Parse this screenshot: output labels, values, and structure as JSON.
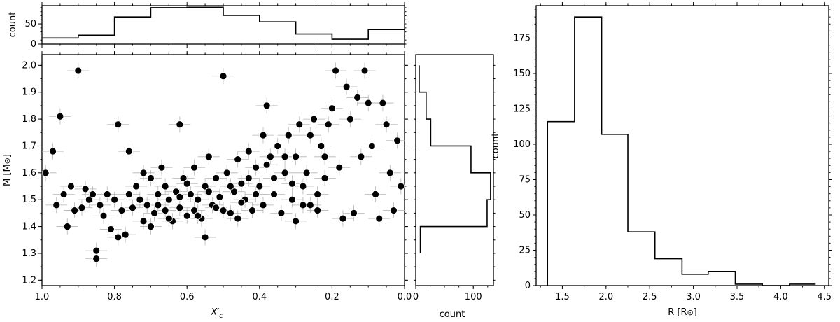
{
  "chart_data": [
    {
      "id": "top-hist",
      "type": "histogram",
      "ylabel": "count",
      "xlim": [
        1.0,
        0.0
      ],
      "ylim": [
        0,
        95
      ],
      "yticks": [
        0,
        50
      ],
      "yticklabels": [
        "0",
        "50"
      ],
      "bin_edges": [
        1.0,
        0.9,
        0.8,
        0.7,
        0.6,
        0.5,
        0.4,
        0.3,
        0.2,
        0.1,
        0.0
      ],
      "counts": [
        15,
        22,
        67,
        90,
        91,
        71,
        55,
        25,
        12,
        36
      ]
    },
    {
      "id": "scatter",
      "type": "scatter",
      "xlabel": "X′",
      "xlabel_sub": "c",
      "ylabel": "M [M",
      "ylabel_sym": "⊙",
      "ylabel_end": "]",
      "xlim": [
        1.0,
        0.0
      ],
      "ylim": [
        1.18,
        2.04
      ],
      "xticks": [
        1.0,
        0.8,
        0.6,
        0.4,
        0.2,
        0.0
      ],
      "xticklabels": [
        "1.0",
        "0.8",
        "0.6",
        "0.4",
        "0.2",
        "0.0"
      ],
      "yticks": [
        1.2,
        1.3,
        1.4,
        1.5,
        1.6,
        1.7,
        1.8,
        1.9,
        2.0
      ],
      "yticklabels": [
        "1.2",
        "1.3",
        "1.4",
        "1.5",
        "1.6",
        "1.7",
        "1.8",
        "1.9",
        "2.0"
      ],
      "points": [
        [
          0.99,
          1.6
        ],
        [
          0.97,
          1.68
        ],
        [
          0.96,
          1.48
        ],
        [
          0.95,
          1.81
        ],
        [
          0.94,
          1.52
        ],
        [
          0.93,
          1.4
        ],
        [
          0.92,
          1.55
        ],
        [
          0.91,
          1.46
        ],
        [
          0.9,
          1.98
        ],
        [
          0.89,
          1.47
        ],
        [
          0.88,
          1.54
        ],
        [
          0.87,
          1.5
        ],
        [
          0.86,
          1.52
        ],
        [
          0.85,
          1.28
        ],
        [
          0.85,
          1.31
        ],
        [
          0.84,
          1.48
        ],
        [
          0.83,
          1.44
        ],
        [
          0.82,
          1.52
        ],
        [
          0.81,
          1.39
        ],
        [
          0.8,
          1.5
        ],
        [
          0.79,
          1.78
        ],
        [
          0.79,
          1.36
        ],
        [
          0.78,
          1.46
        ],
        [
          0.77,
          1.37
        ],
        [
          0.76,
          1.68
        ],
        [
          0.76,
          1.52
        ],
        [
          0.75,
          1.47
        ],
        [
          0.74,
          1.55
        ],
        [
          0.73,
          1.5
        ],
        [
          0.72,
          1.42
        ],
        [
          0.72,
          1.6
        ],
        [
          0.71,
          1.48
        ],
        [
          0.7,
          1.58
        ],
        [
          0.69,
          1.45
        ],
        [
          0.68,
          1.52
        ],
        [
          0.67,
          1.62
        ],
        [
          0.66,
          1.55
        ],
        [
          0.66,
          1.46
        ],
        [
          0.65,
          1.5
        ],
        [
          0.64,
          1.42
        ],
        [
          0.63,
          1.53
        ],
        [
          0.62,
          1.78
        ],
        [
          0.62,
          1.47
        ],
        [
          0.61,
          1.58
        ],
        [
          0.6,
          1.44
        ],
        [
          0.59,
          1.52
        ],
        [
          0.58,
          1.62
        ],
        [
          0.58,
          1.46
        ],
        [
          0.57,
          1.5
        ],
        [
          0.56,
          1.43
        ],
        [
          0.55,
          1.55
        ],
        [
          0.55,
          1.36
        ],
        [
          0.54,
          1.66
        ],
        [
          0.53,
          1.48
        ],
        [
          0.52,
          1.58
        ],
        [
          0.51,
          1.51
        ],
        [
          0.5,
          1.96
        ],
        [
          0.5,
          1.46
        ],
        [
          0.49,
          1.6
        ],
        [
          0.48,
          1.45
        ],
        [
          0.47,
          1.53
        ],
        [
          0.46,
          1.65
        ],
        [
          0.46,
          1.43
        ],
        [
          0.45,
          1.56
        ],
        [
          0.44,
          1.5
        ],
        [
          0.43,
          1.68
        ],
        [
          0.42,
          1.46
        ],
        [
          0.41,
          1.62
        ],
        [
          0.4,
          1.55
        ],
        [
          0.39,
          1.74
        ],
        [
          0.39,
          1.48
        ],
        [
          0.38,
          1.85
        ],
        [
          0.37,
          1.66
        ],
        [
          0.36,
          1.52
        ],
        [
          0.35,
          1.7
        ],
        [
          0.34,
          1.45
        ],
        [
          0.33,
          1.6
        ],
        [
          0.32,
          1.74
        ],
        [
          0.31,
          1.5
        ],
        [
          0.3,
          1.42
        ],
        [
          0.3,
          1.66
        ],
        [
          0.29,
          1.78
        ],
        [
          0.28,
          1.55
        ],
        [
          0.27,
          1.6
        ],
        [
          0.26,
          1.48
        ],
        [
          0.25,
          1.8
        ],
        [
          0.24,
          1.46
        ],
        [
          0.23,
          1.7
        ],
        [
          0.22,
          1.66
        ],
        [
          0.21,
          1.78
        ],
        [
          0.2,
          1.84
        ],
        [
          0.19,
          1.98
        ],
        [
          0.18,
          1.62
        ],
        [
          0.17,
          1.43
        ],
        [
          0.16,
          1.92
        ],
        [
          0.15,
          1.8
        ],
        [
          0.14,
          1.45
        ],
        [
          0.13,
          1.88
        ],
        [
          0.12,
          1.66
        ],
        [
          0.11,
          1.98
        ],
        [
          0.1,
          1.86
        ],
        [
          0.09,
          1.7
        ],
        [
          0.08,
          1.52
        ],
        [
          0.07,
          1.43
        ],
        [
          0.06,
          1.86
        ],
        [
          0.05,
          1.78
        ],
        [
          0.04,
          1.6
        ],
        [
          0.03,
          1.46
        ],
        [
          0.02,
          1.72
        ],
        [
          0.01,
          1.55
        ],
        [
          0.7,
          1.4
        ],
        [
          0.68,
          1.48
        ],
        [
          0.65,
          1.43
        ],
        [
          0.62,
          1.51
        ],
        [
          0.6,
          1.56
        ],
        [
          0.57,
          1.44
        ],
        [
          0.54,
          1.53
        ],
        [
          0.52,
          1.47
        ],
        [
          0.48,
          1.55
        ],
        [
          0.45,
          1.49
        ],
        [
          0.43,
          1.58
        ],
        [
          0.41,
          1.52
        ],
        [
          0.38,
          1.63
        ],
        [
          0.36,
          1.58
        ],
        [
          0.33,
          1.66
        ],
        [
          0.31,
          1.56
        ],
        [
          0.28,
          1.48
        ],
        [
          0.26,
          1.74
        ],
        [
          0.24,
          1.52
        ],
        [
          0.22,
          1.58
        ]
      ],
      "xerr": 0.03,
      "yerr": 0.03
    },
    {
      "id": "right-hist",
      "type": "histogram",
      "orientation": "horizontal",
      "xlabel": "count",
      "xlim": [
        0,
        135
      ],
      "xticks": [
        0,
        100
      ],
      "xticklabels": [
        "0",
        "100"
      ],
      "bin_edges": [
        1.3,
        1.4,
        1.5,
        1.6,
        1.7,
        1.8,
        1.9,
        2.0
      ],
      "counts": [
        8,
        124,
        130,
        96,
        26,
        18,
        6
      ]
    },
    {
      "id": "radius-hist",
      "type": "histogram",
      "xlabel": "R [R",
      "xlabel_sym": "⊙",
      "xlabel_end": "]",
      "ylabel": "count",
      "xlim": [
        1.2,
        4.55
      ],
      "ylim": [
        0,
        198
      ],
      "xticks": [
        1.5,
        2.0,
        2.5,
        3.0,
        3.5,
        4.0,
        4.5
      ],
      "xticklabels": [
        "1.5",
        "2.0",
        "2.5",
        "3.0",
        "3.5",
        "4.0",
        "4.5"
      ],
      "yticks": [
        0,
        25,
        50,
        75,
        100,
        125,
        150,
        175
      ],
      "yticklabels": [
        "0",
        "25",
        "50",
        "75",
        "100",
        "125",
        "150",
        "175"
      ],
      "bin_edges": [
        1.33,
        1.64,
        1.95,
        2.25,
        2.56,
        2.87,
        3.17,
        3.48,
        3.79,
        4.1,
        4.4
      ],
      "counts": [
        116,
        190,
        107,
        38,
        19,
        8,
        10,
        1,
        0,
        1
      ]
    }
  ]
}
